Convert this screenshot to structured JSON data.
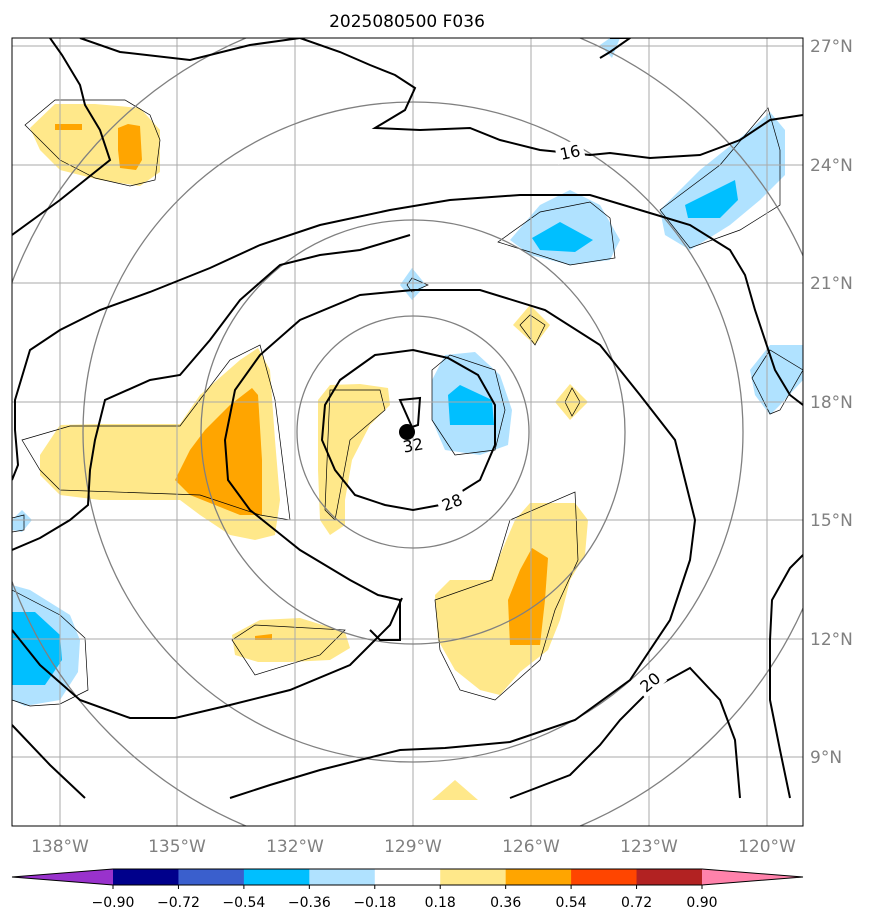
{
  "title": "2025080500 F036",
  "lon_ticks": [
    "138°W",
    "135°W",
    "132°W",
    "129°W",
    "126°W",
    "123°W",
    "120°W"
  ],
  "lat_ticks": [
    "27°N",
    "24°N",
    "21°N",
    "18°N",
    "15°N",
    "12°N",
    "9°N"
  ],
  "contour_labels": [
    "16",
    "20",
    "28",
    "32"
  ],
  "colorbar": {
    "ticks": [
      "−0.90",
      "−0.72",
      "−0.54",
      "−0.36",
      "−0.18",
      "0.18",
      "0.36",
      "0.54",
      "0.72",
      "0.90"
    ],
    "colors": [
      "#9932cc",
      "#00008b",
      "#3a5fcd",
      "#00bfff",
      "#b0e2ff",
      "#ffffff",
      "#ffe88a",
      "#ffa500",
      "#ff4500",
      "#b22222",
      "#ff82ab"
    ]
  },
  "storm_center": {
    "lon": -129.1,
    "lat": 17.3
  },
  "colors": {
    "light_yellow": "#ffe88a",
    "orange": "#ffa500",
    "light_blue": "#b0e2ff",
    "blue": "#00bfff",
    "grid": "#aaaaaa",
    "range_circle": "#808080"
  }
}
